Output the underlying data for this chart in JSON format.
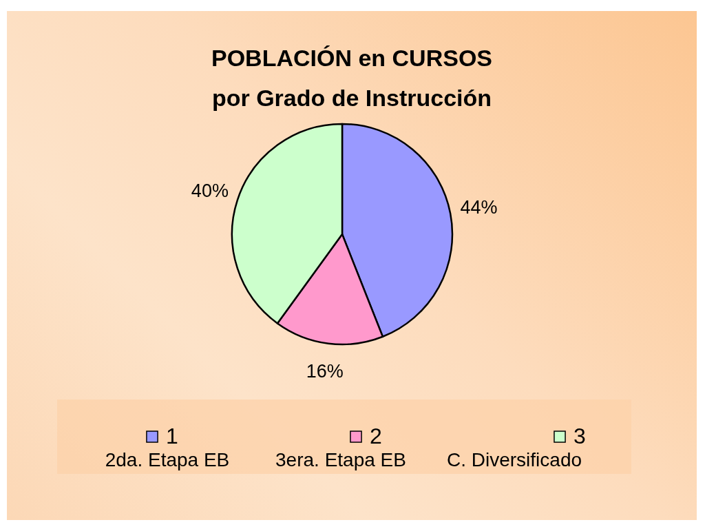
{
  "chart_data": {
    "type": "pie",
    "title": "POBLACIÓN en CURSOS",
    "subtitle": "por Grado de Instrucción",
    "categories": [
      "1",
      "2",
      "3"
    ],
    "values": [
      44,
      16,
      40
    ],
    "colors": [
      "#9999ff",
      "#ff99cc",
      "#ccffcc"
    ],
    "value_labels": [
      "44%",
      "16%",
      "40%"
    ],
    "legend": "bottom",
    "annotations": [
      "2da. Etapa EB",
      "3era. Etapa EB",
      "C. Diversificado"
    ]
  }
}
